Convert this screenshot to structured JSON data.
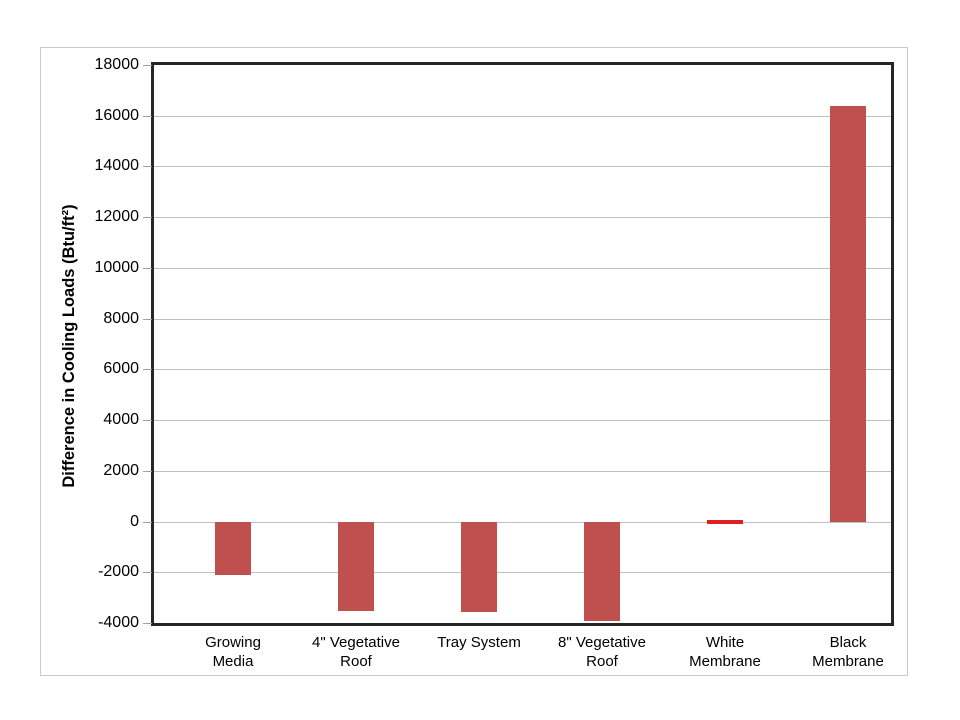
{
  "chart_data": {
    "type": "bar",
    "title": "",
    "xlabel": "",
    "ylabel": "Difference in Cooling Loads (Btu/ft²)",
    "ylim": [
      -4000,
      18000
    ],
    "ytick_step": 2000,
    "ytick_labels": [
      "18000",
      "16000",
      "14000",
      "12000",
      "10000",
      "8000",
      "6000",
      "4000",
      "2000",
      "0",
      "-2000",
      "-4000"
    ],
    "grid": true,
    "legend": false,
    "categories": [
      "Growing Media",
      "4\" Vegetative Roof",
      "Tray System",
      "8\" Vegetative Roof",
      "White Membrane",
      "Black Membrane"
    ],
    "category_label_lines": [
      [
        "Growing",
        "Media"
      ],
      [
        "4\" Vegetative",
        "Roof"
      ],
      [
        "Tray System"
      ],
      [
        "8\" Vegetative",
        "Roof"
      ],
      [
        "White",
        "Membrane"
      ],
      [
        "Black",
        "Membrane"
      ]
    ],
    "values": [
      -2100,
      -3500,
      -3550,
      -3900,
      50,
      16400
    ],
    "bar_color": "#C0504D",
    "point_colors": {
      "White Membrane": "#E02020"
    },
    "gridline_color": "#C0C0C0",
    "plot_border_color": "#262626",
    "frame_border_color": "#C9C9C9",
    "background_color": "#FFFFFF"
  }
}
